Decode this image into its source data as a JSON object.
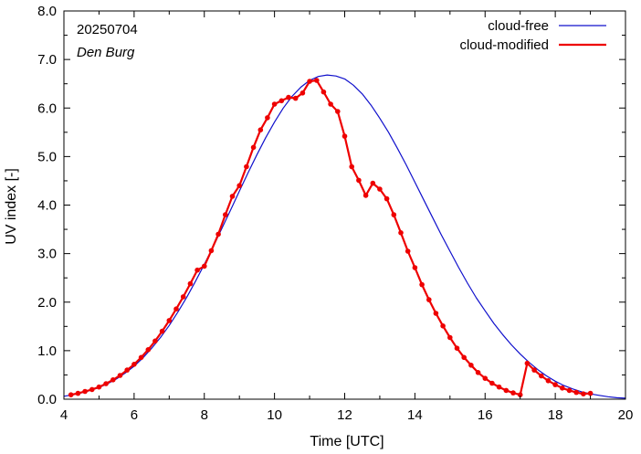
{
  "chart_data": {
    "type": "line",
    "xlabel": "Time  [UTC]",
    "ylabel": "UV index  [-]",
    "xlim": [
      4,
      20
    ],
    "ylim": [
      0,
      8
    ],
    "x_ticks": [
      4,
      6,
      8,
      10,
      12,
      14,
      16,
      18,
      20
    ],
    "x_tick_labels": [
      "4",
      "6",
      "8",
      "10",
      "12",
      "14",
      "16",
      "18",
      "20"
    ],
    "y_ticks": [
      0,
      1,
      2,
      3,
      4,
      5,
      6,
      7,
      8
    ],
    "y_tick_labels": [
      "0.0",
      "1.0",
      "2.0",
      "3.0",
      "4.0",
      "5.0",
      "6.0",
      "7.0",
      "8.0"
    ],
    "annotations": {
      "date": "20250704",
      "location": "Den Burg"
    },
    "grid": false,
    "legend_position": "top-right",
    "series": [
      {
        "name": "cloud-free",
        "color": "#1010cc",
        "style": "line",
        "x": [
          4.0,
          4.25,
          4.5,
          4.75,
          5.0,
          5.25,
          5.5,
          5.75,
          6.0,
          6.25,
          6.5,
          6.75,
          7.0,
          7.25,
          7.5,
          7.75,
          8.0,
          8.25,
          8.5,
          8.75,
          9.0,
          9.25,
          9.5,
          9.75,
          10.0,
          10.25,
          10.5,
          10.75,
          11.0,
          11.25,
          11.5,
          11.75,
          12.0,
          12.25,
          12.5,
          12.75,
          13.0,
          13.25,
          13.5,
          13.75,
          14.0,
          14.25,
          14.5,
          14.75,
          15.0,
          15.25,
          15.5,
          15.75,
          16.0,
          16.25,
          16.5,
          16.75,
          17.0,
          17.25,
          17.5,
          17.75,
          18.0,
          18.25,
          18.5,
          18.75,
          19.0,
          19.25,
          19.5,
          19.75,
          20.0
        ],
        "y": [
          0.06,
          0.09,
          0.13,
          0.18,
          0.24,
          0.32,
          0.42,
          0.54,
          0.68,
          0.85,
          1.05,
          1.27,
          1.52,
          1.8,
          2.1,
          2.43,
          2.78,
          3.14,
          3.52,
          3.9,
          4.29,
          4.67,
          5.04,
          5.39,
          5.71,
          6.0,
          6.24,
          6.43,
          6.57,
          6.65,
          6.68,
          6.66,
          6.6,
          6.47,
          6.29,
          6.06,
          5.79,
          5.5,
          5.17,
          4.83,
          4.47,
          4.11,
          3.75,
          3.39,
          3.05,
          2.71,
          2.39,
          2.09,
          1.82,
          1.56,
          1.33,
          1.12,
          0.93,
          0.76,
          0.61,
          0.48,
          0.37,
          0.28,
          0.21,
          0.15,
          0.11,
          0.08,
          0.05,
          0.03,
          0.02
        ]
      },
      {
        "name": "cloud-modified",
        "color": "#ee0000",
        "style": "line+markers",
        "x": [
          4.2,
          4.4,
          4.6,
          4.8,
          5.0,
          5.2,
          5.4,
          5.6,
          5.8,
          6.0,
          6.2,
          6.4,
          6.6,
          6.8,
          7.0,
          7.2,
          7.4,
          7.6,
          7.8,
          8.0,
          8.2,
          8.4,
          8.6,
          8.8,
          9.0,
          9.2,
          9.4,
          9.6,
          9.8,
          10.0,
          10.2,
          10.4,
          10.6,
          10.8,
          11.0,
          11.2,
          11.4,
          11.6,
          11.8,
          12.0,
          12.2,
          12.4,
          12.6,
          12.8,
          13.0,
          13.2,
          13.4,
          13.6,
          13.8,
          14.0,
          14.2,
          14.4,
          14.6,
          14.8,
          15.0,
          15.2,
          15.4,
          15.6,
          15.8,
          16.0,
          16.2,
          16.4,
          16.6,
          16.8,
          17.0,
          17.2,
          17.4,
          17.6,
          17.8,
          18.0,
          18.2,
          18.4,
          18.6,
          18.8,
          19.0
        ],
        "y": [
          0.09,
          0.12,
          0.16,
          0.2,
          0.25,
          0.32,
          0.4,
          0.49,
          0.6,
          0.72,
          0.86,
          1.02,
          1.2,
          1.4,
          1.62,
          1.86,
          2.11,
          2.38,
          2.66,
          2.74,
          3.06,
          3.4,
          3.8,
          4.18,
          4.4,
          4.79,
          5.19,
          5.55,
          5.8,
          6.08,
          6.15,
          6.22,
          6.2,
          6.31,
          6.55,
          6.57,
          6.33,
          6.08,
          5.93,
          5.42,
          4.79,
          4.51,
          4.2,
          4.45,
          4.33,
          4.13,
          3.8,
          3.43,
          3.05,
          2.71,
          2.36,
          2.05,
          1.77,
          1.51,
          1.27,
          1.05,
          0.86,
          0.7,
          0.55,
          0.43,
          0.33,
          0.25,
          0.18,
          0.13,
          0.09,
          0.74,
          0.6,
          0.48,
          0.38,
          0.3,
          0.23,
          0.18,
          0.14,
          0.11,
          0.12
        ]
      }
    ]
  }
}
